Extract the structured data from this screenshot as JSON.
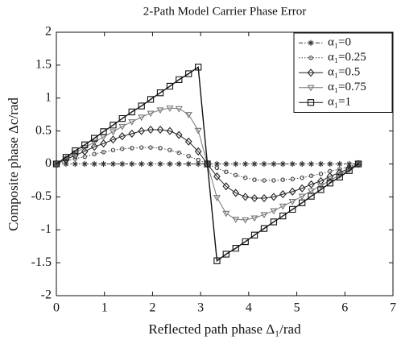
{
  "chart_data": {
    "type": "line",
    "title": "2-Path Model Carrier Phase Error",
    "xlabel": "Reflected path phase Δ₁/rad",
    "ylabel": "Composite phase Δc/rad",
    "x": [
      0,
      0.2,
      0.39,
      0.59,
      0.79,
      0.98,
      1.18,
      1.37,
      1.57,
      1.77,
      1.96,
      2.16,
      2.36,
      2.55,
      2.75,
      2.95,
      3.14,
      3.34,
      3.53,
      3.73,
      3.93,
      4.12,
      4.32,
      4.52,
      4.71,
      4.91,
      5.11,
      5.3,
      5.5,
      5.69,
      5.89,
      6.09,
      6.28
    ],
    "series": [
      {
        "name": "α₁=0",
        "color": "#333333",
        "linestyle": "dashdot",
        "marker": "star",
        "values": [
          0,
          0,
          0,
          0,
          0,
          0,
          0,
          0,
          0,
          0,
          0,
          0,
          0,
          0,
          0,
          0,
          0,
          0,
          0,
          0,
          0,
          0,
          0,
          0,
          0,
          0,
          0,
          0,
          0,
          0,
          0,
          0,
          0
        ]
      },
      {
        "name": "α₁=0.25",
        "color": "#444444",
        "linestyle": "dotted",
        "marker": "circle",
        "values": [
          0,
          0.04,
          0.08,
          0.11,
          0.15,
          0.18,
          0.21,
          0.23,
          0.24,
          0.25,
          0.25,
          0.24,
          0.21,
          0.17,
          0.12,
          0.06,
          0,
          -0.06,
          -0.12,
          -0.17,
          -0.21,
          -0.24,
          -0.25,
          -0.25,
          -0.24,
          -0.23,
          -0.21,
          -0.18,
          -0.15,
          -0.11,
          -0.08,
          -0.04,
          0
        ]
      },
      {
        "name": "α₁=0.5",
        "color": "#222222",
        "linestyle": "solid",
        "marker": "diamond",
        "values": [
          0,
          0.07,
          0.13,
          0.19,
          0.26,
          0.31,
          0.37,
          0.42,
          0.46,
          0.5,
          0.52,
          0.52,
          0.5,
          0.44,
          0.34,
          0.19,
          0,
          -0.19,
          -0.34,
          -0.44,
          -0.5,
          -0.52,
          -0.52,
          -0.5,
          -0.46,
          -0.42,
          -0.37,
          -0.31,
          -0.26,
          -0.19,
          -0.13,
          -0.07,
          0
        ]
      },
      {
        "name": "α₁=0.75",
        "color": "#777777",
        "linestyle": "solid",
        "marker": "triangle",
        "values": [
          0,
          0.08,
          0.17,
          0.25,
          0.33,
          0.41,
          0.49,
          0.57,
          0.64,
          0.71,
          0.77,
          0.82,
          0.85,
          0.84,
          0.75,
          0.51,
          0,
          -0.51,
          -0.75,
          -0.84,
          -0.85,
          -0.82,
          -0.77,
          -0.71,
          -0.64,
          -0.57,
          -0.49,
          -0.41,
          -0.33,
          -0.25,
          -0.17,
          -0.08,
          0
        ]
      },
      {
        "name": "α₁=1",
        "color": "#111111",
        "linestyle": "solid",
        "marker": "square",
        "values": [
          0,
          0.1,
          0.2,
          0.29,
          0.39,
          0.49,
          0.59,
          0.69,
          0.79,
          0.88,
          0.98,
          1.08,
          1.18,
          1.28,
          1.37,
          1.47,
          0,
          -1.47,
          -1.37,
          -1.28,
          -1.18,
          -1.08,
          -0.98,
          -0.88,
          -0.79,
          -0.69,
          -0.59,
          -0.49,
          -0.39,
          -0.29,
          -0.2,
          -0.1,
          0
        ]
      }
    ],
    "xlim": [
      0,
      7
    ],
    "xticks": [
      0,
      1,
      2,
      3,
      4,
      5,
      6,
      7
    ],
    "ylim": [
      -2,
      2
    ],
    "yticks": [
      -2,
      -1.5,
      -1,
      -0.5,
      0,
      0.5,
      1,
      1.5,
      2
    ],
    "grid": false,
    "legend": "upper right"
  }
}
